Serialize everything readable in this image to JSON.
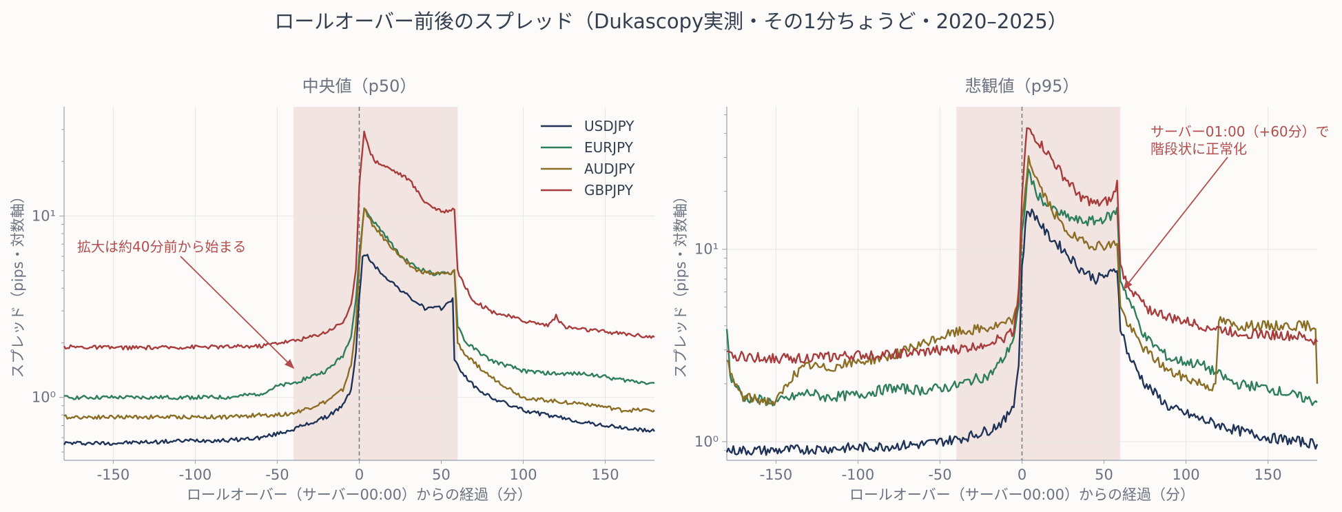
{
  "title": "ロールオーバー前後のスプレッド（Dukascopy実測・その1分ちょうど・2020–2025）",
  "colors": {
    "USDJPY": "#1f3358",
    "EURJPY": "#2e7d5b",
    "AUDJPY": "#8c6d24",
    "GBPJPY": "#a83c3c",
    "shade": "#eddcd8",
    "grid": "#e9e7e4",
    "annotation": "#b24e4e"
  },
  "chart_data": [
    {
      "type": "line",
      "title": "中央値（p50）",
      "xlabel": "ロールオーバー（サーバー00:00）からの経過（分）",
      "ylabel": "スプレッド（pips・対数軸）",
      "xlim": [
        -180,
        180
      ],
      "ylim": [
        0.45,
        40
      ],
      "yscale": "log",
      "xticks": [
        "-150",
        "-100",
        "-50",
        "0",
        "50",
        "100",
        "150"
      ],
      "yticks": [
        "10⁰",
        "10¹"
      ],
      "shaded_region": [
        -40,
        60
      ],
      "vline": 0,
      "legend": "top-right",
      "annotation": {
        "text": "拡大は約40分前から始まる",
        "arrow_to": [
          -40,
          1.45
        ]
      },
      "series": [
        {
          "name": "USDJPY",
          "points": [
            [
              -180,
              0.56
            ],
            [
              -150,
              0.56
            ],
            [
              -120,
              0.57
            ],
            [
              -100,
              0.58
            ],
            [
              -80,
              0.58
            ],
            [
              -60,
              0.6
            ],
            [
              -50,
              0.63
            ],
            [
              -40,
              0.67
            ],
            [
              -30,
              0.72
            ],
            [
              -20,
              0.78
            ],
            [
              -10,
              0.9
            ],
            [
              -5,
              1.1
            ],
            [
              -2,
              1.8
            ],
            [
              0,
              3.5
            ],
            [
              2,
              6.0
            ],
            [
              5,
              6.0
            ],
            [
              10,
              5.2
            ],
            [
              20,
              4.3
            ],
            [
              30,
              3.6
            ],
            [
              40,
              3.1
            ],
            [
              50,
              3.1
            ],
            [
              57,
              3.5
            ],
            [
              58,
              1.6
            ],
            [
              62,
              1.4
            ],
            [
              70,
              1.15
            ],
            [
              80,
              1.0
            ],
            [
              100,
              0.85
            ],
            [
              120,
              0.78
            ],
            [
              140,
              0.72
            ],
            [
              160,
              0.68
            ],
            [
              180,
              0.65
            ]
          ]
        },
        {
          "name": "EURJPY",
          "points": [
            [
              -180,
              1.0
            ],
            [
              -150,
              1.0
            ],
            [
              -120,
              1.0
            ],
            [
              -100,
              1.0
            ],
            [
              -80,
              1.0
            ],
            [
              -60,
              1.05
            ],
            [
              -50,
              1.15
            ],
            [
              -40,
              1.2
            ],
            [
              -30,
              1.3
            ],
            [
              -20,
              1.4
            ],
            [
              -10,
              1.7
            ],
            [
              -5,
              2.2
            ],
            [
              -2,
              3.5
            ],
            [
              0,
              6.0
            ],
            [
              3,
              11
            ],
            [
              8,
              9.5
            ],
            [
              15,
              8.0
            ],
            [
              25,
              6.0
            ],
            [
              35,
              5.2
            ],
            [
              45,
              4.8
            ],
            [
              55,
              4.8
            ],
            [
              58,
              5.0
            ],
            [
              60,
              2.5
            ],
            [
              65,
              2.0
            ],
            [
              80,
              1.6
            ],
            [
              100,
              1.4
            ],
            [
              120,
              1.35
            ],
            [
              140,
              1.35
            ],
            [
              160,
              1.25
            ],
            [
              180,
              1.2
            ]
          ]
        },
        {
          "name": "AUDJPY",
          "points": [
            [
              -180,
              0.78
            ],
            [
              -150,
              0.78
            ],
            [
              -120,
              0.78
            ],
            [
              -100,
              0.78
            ],
            [
              -80,
              0.78
            ],
            [
              -60,
              0.8
            ],
            [
              -50,
              0.8
            ],
            [
              -40,
              0.82
            ],
            [
              -30,
              0.88
            ],
            [
              -20,
              0.95
            ],
            [
              -10,
              1.1
            ],
            [
              -5,
              1.5
            ],
            [
              -2,
              2.5
            ],
            [
              0,
              5.5
            ],
            [
              3,
              11
            ],
            [
              8,
              9.0
            ],
            [
              15,
              7.5
            ],
            [
              25,
              6.0
            ],
            [
              35,
              5.0
            ],
            [
              45,
              4.8
            ],
            [
              55,
              4.8
            ],
            [
              58,
              5.0
            ],
            [
              60,
              2.0
            ],
            [
              65,
              1.7
            ],
            [
              80,
              1.3
            ],
            [
              100,
              1.0
            ],
            [
              120,
              0.95
            ],
            [
              140,
              0.92
            ],
            [
              160,
              0.85
            ],
            [
              180,
              0.85
            ]
          ]
        },
        {
          "name": "GBPJPY",
          "points": [
            [
              -180,
              1.9
            ],
            [
              -150,
              1.88
            ],
            [
              -120,
              1.88
            ],
            [
              -100,
              1.9
            ],
            [
              -80,
              1.9
            ],
            [
              -60,
              1.92
            ],
            [
              -50,
              2.0
            ],
            [
              -40,
              2.05
            ],
            [
              -30,
              2.15
            ],
            [
              -20,
              2.3
            ],
            [
              -10,
              2.6
            ],
            [
              -5,
              3.2
            ],
            [
              -2,
              5.0
            ],
            [
              0,
              15
            ],
            [
              3,
              30
            ],
            [
              6,
              23
            ],
            [
              10,
              20
            ],
            [
              20,
              18
            ],
            [
              30,
              16
            ],
            [
              40,
              12
            ],
            [
              50,
              10.5
            ],
            [
              58,
              11
            ],
            [
              60,
              5.0
            ],
            [
              65,
              4.0
            ],
            [
              70,
              3.4
            ],
            [
              80,
              3.0
            ],
            [
              100,
              2.65
            ],
            [
              115,
              2.5
            ],
            [
              120,
              2.8
            ],
            [
              125,
              2.45
            ],
            [
              140,
              2.35
            ],
            [
              160,
              2.25
            ],
            [
              180,
              2.15
            ]
          ]
        }
      ]
    },
    {
      "type": "line",
      "title": "悲観値（p95）",
      "xlabel": "ロールオーバー（サーバー00:00）からの経過（分）",
      "ylabel": "スプレッド（pips・対数軸）",
      "xlim": [
        -180,
        180
      ],
      "ylim": [
        0.8,
        55
      ],
      "yscale": "log",
      "xticks": [
        "-150",
        "-100",
        "-50",
        "0",
        "50",
        "100",
        "150"
      ],
      "yticks": [
        "10⁰",
        "10¹"
      ],
      "shaded_region": [
        -40,
        60
      ],
      "vline": 0,
      "annotation": {
        "text": [
          "サーバー01:00（+60分）で",
          "階段状に正常化"
        ],
        "arrow_to": [
          62,
          6.2
        ]
      },
      "series": [
        {
          "name": "USDJPY",
          "points": [
            [
              -180,
              0.9
            ],
            [
              -150,
              0.9
            ],
            [
              -120,
              0.92
            ],
            [
              -100,
              0.93
            ],
            [
              -80,
              0.95
            ],
            [
              -60,
              0.97
            ],
            [
              -50,
              1.0
            ],
            [
              -40,
              1.03
            ],
            [
              -30,
              1.08
            ],
            [
              -20,
              1.15
            ],
            [
              -10,
              1.3
            ],
            [
              -5,
              1.6
            ],
            [
              -2,
              2.5
            ],
            [
              0,
              8.0
            ],
            [
              3,
              16
            ],
            [
              8,
              15
            ],
            [
              15,
              12
            ],
            [
              25,
              10
            ],
            [
              35,
              8.0
            ],
            [
              45,
              7.0
            ],
            [
              55,
              7.5
            ],
            [
              58,
              8.0
            ],
            [
              60,
              4.0
            ],
            [
              65,
              2.8
            ],
            [
              75,
              2.0
            ],
            [
              90,
              1.5
            ],
            [
              110,
              1.3
            ],
            [
              130,
              1.15
            ],
            [
              150,
              1.05
            ],
            [
              170,
              1.0
            ],
            [
              180,
              0.97
            ]
          ]
        },
        {
          "name": "EURJPY",
          "points": [
            [
              -180,
              4.0
            ],
            [
              -178,
              2.2
            ],
            [
              -170,
              1.7
            ],
            [
              -150,
              1.6
            ],
            [
              -140,
              1.7
            ],
            [
              -130,
              1.8
            ],
            [
              -120,
              1.7
            ],
            [
              -100,
              1.75
            ],
            [
              -80,
              1.9
            ],
            [
              -60,
              1.85
            ],
            [
              -50,
              1.9
            ],
            [
              -40,
              1.95
            ],
            [
              -30,
              2.1
            ],
            [
              -20,
              2.2
            ],
            [
              -10,
              2.8
            ],
            [
              -5,
              3.5
            ],
            [
              -2,
              5.0
            ],
            [
              0,
              12
            ],
            [
              4,
              26
            ],
            [
              8,
              20
            ],
            [
              15,
              17
            ],
            [
              25,
              15
            ],
            [
              35,
              14
            ],
            [
              45,
              14
            ],
            [
              55,
              15
            ],
            [
              58,
              16
            ],
            [
              60,
              7.0
            ],
            [
              65,
              5.5
            ],
            [
              75,
              3.5
            ],
            [
              90,
              2.7
            ],
            [
              110,
              2.5
            ],
            [
              130,
              2.0
            ],
            [
              150,
              1.9
            ],
            [
              170,
              1.7
            ],
            [
              180,
              1.6
            ]
          ]
        },
        {
          "name": "AUDJPY",
          "points": [
            [
              -180,
              2.8
            ],
            [
              -178,
              2.2
            ],
            [
              -170,
              1.7
            ],
            [
              -150,
              1.6
            ],
            [
              -140,
              2.2
            ],
            [
              -130,
              2.5
            ],
            [
              -120,
              2.4
            ],
            [
              -100,
              2.6
            ],
            [
              -80,
              2.8
            ],
            [
              -60,
              3.2
            ],
            [
              -50,
              3.5
            ],
            [
              -40,
              3.7
            ],
            [
              -30,
              3.8
            ],
            [
              -20,
              3.9
            ],
            [
              -10,
              4.1
            ],
            [
              -5,
              4.3
            ],
            [
              -2,
              6.0
            ],
            [
              0,
              14
            ],
            [
              4,
              30
            ],
            [
              8,
              24
            ],
            [
              15,
              18
            ],
            [
              25,
              13
            ],
            [
              35,
              11
            ],
            [
              45,
              10.5
            ],
            [
              55,
              10.5
            ],
            [
              58,
              11
            ],
            [
              60,
              5.0
            ],
            [
              65,
              4.0
            ],
            [
              75,
              3.0
            ],
            [
              90,
              2.3
            ],
            [
              110,
              2.0
            ],
            [
              118,
              1.9
            ],
            [
              120,
              4.3
            ],
            [
              130,
              4.0
            ],
            [
              150,
              4.0
            ],
            [
              170,
              4.0
            ],
            [
              179,
              4.0
            ],
            [
              180,
              2.0
            ]
          ]
        },
        {
          "name": "GBPJPY",
          "points": [
            [
              -180,
              2.8
            ],
            [
              -150,
              2.7
            ],
            [
              -120,
              2.75
            ],
            [
              -100,
              2.8
            ],
            [
              -80,
              2.85
            ],
            [
              -60,
              2.9
            ],
            [
              -50,
              3.0
            ],
            [
              -40,
              3.0
            ],
            [
              -30,
              3.1
            ],
            [
              -20,
              3.3
            ],
            [
              -10,
              3.5
            ],
            [
              -5,
              3.8
            ],
            [
              -2,
              6.0
            ],
            [
              0,
              20
            ],
            [
              3,
              42
            ],
            [
              8,
              38
            ],
            [
              15,
              32
            ],
            [
              25,
              24
            ],
            [
              35,
              19
            ],
            [
              45,
              17
            ],
            [
              55,
              18
            ],
            [
              58,
              22
            ],
            [
              60,
              8.0
            ],
            [
              65,
              6.5
            ],
            [
              75,
              5.0
            ],
            [
              90,
              4.4
            ],
            [
              110,
              4.0
            ],
            [
              130,
              3.7
            ],
            [
              150,
              3.6
            ],
            [
              170,
              3.5
            ],
            [
              180,
              3.3
            ]
          ]
        }
      ]
    }
  ]
}
